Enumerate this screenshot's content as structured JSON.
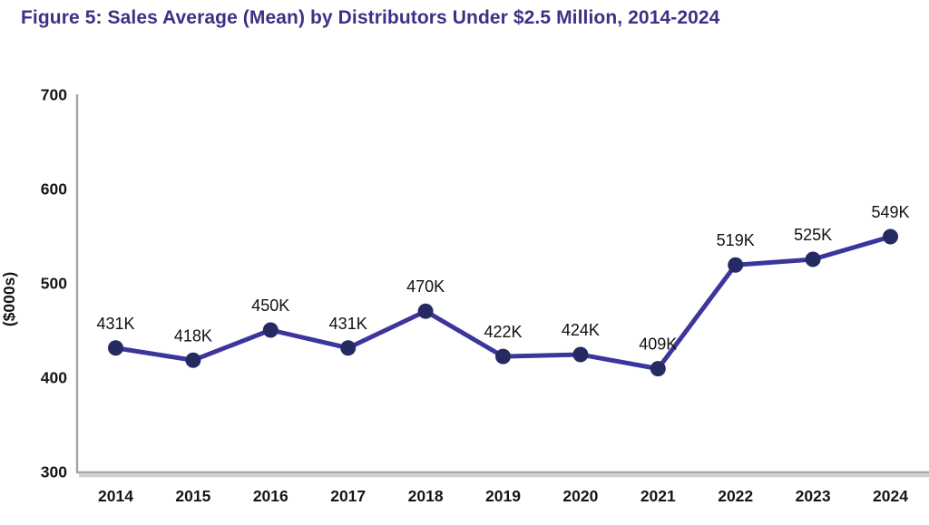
{
  "title": "Figure 5: Sales Average (Mean) by Distributors Under $2.5 Million, 2014-2024",
  "chart_data": {
    "type": "line",
    "title": "Figure 5: Sales Average (Mean) by Distributors Under $2.5 Million, 2014-2024",
    "categories": [
      "2014",
      "2015",
      "2016",
      "2017",
      "2018",
      "2019",
      "2020",
      "2021",
      "2022",
      "2023",
      "2024"
    ],
    "series": [
      {
        "name": "Sales Average (Mean)",
        "values": [
          431,
          418,
          450,
          431,
          470,
          422,
          424,
          409,
          519,
          525,
          549
        ],
        "point_labels": [
          "431K",
          "418K",
          "450K",
          "431K",
          "470K",
          "422K",
          "424K",
          "409K",
          "519K",
          "525K",
          "549K"
        ]
      }
    ],
    "xlabel": "",
    "ylabel": "($000s)",
    "ylim": [
      300,
      700
    ],
    "yticks": [
      300,
      400,
      500,
      600,
      700
    ],
    "grid": false,
    "legend_position": "none"
  },
  "colors": {
    "title_text": "#3a3286",
    "series_line": "#3b359c",
    "marker_fill": "#262a63",
    "axis_line": "#a6a6a6",
    "axis_shadow": "#cfcfcf",
    "tick_text": "#151515",
    "data_label_text": "#111111",
    "plot_background": "#ffffff",
    "page_background": "#ffffff"
  }
}
